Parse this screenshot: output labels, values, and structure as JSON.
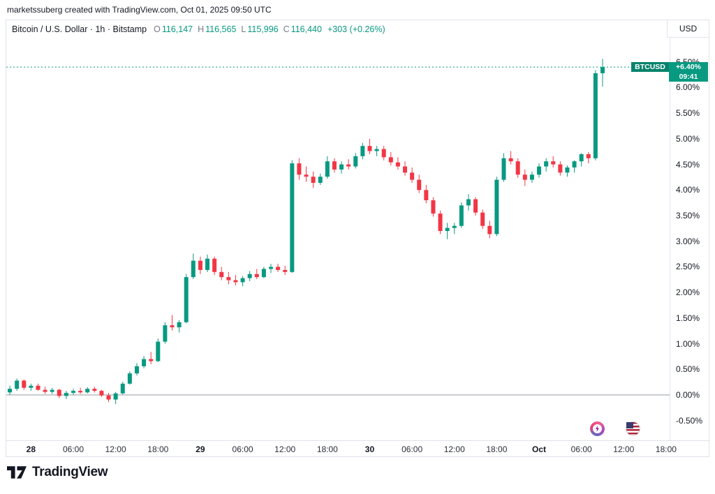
{
  "attribution": "marketssuberg created with TradingView.com, Oct 01, 2025 09:50 UTC",
  "header": {
    "symbol_title": "Bitcoin / U.S. Dollar · 1h · Bitstamp",
    "ohlc": {
      "o_label": "O",
      "o_value": "116,147",
      "h_label": "H",
      "h_value": "116,565",
      "l_label": "L",
      "l_value": "115,996",
      "c_label": "C",
      "c_value": "116,440",
      "change": "+303 (+0.26%)"
    },
    "currency": "USD"
  },
  "price_label": {
    "symbol": "BTCUSD",
    "change_pct": "+6.40%",
    "time": "09:41"
  },
  "footer": {
    "logo_text": "TradingView"
  },
  "colors": {
    "up": "#089981",
    "down": "#F23645",
    "axis_text": "#131722",
    "muted": "#787b86",
    "border": "#e0e3eb",
    "zero_line": "#9598a1",
    "label_bg": "#089981",
    "label_bg_dark": "#07836c"
  },
  "chart_data": {
    "type": "candlestick",
    "title": "Bitcoin / U.S. Dollar",
    "symbol": "BTCUSD",
    "interval": "1h",
    "exchange": "Bitstamp",
    "unit": "percent_change",
    "current_price_pct": 6.4,
    "zero_line_pct": 0.0,
    "grid": false,
    "y_axis": {
      "min": -0.885,
      "max": 6.96,
      "ticks": [
        {
          "v": 6.5,
          "label": "6.50%"
        },
        {
          "v": 6.0,
          "label": "6.00%"
        },
        {
          "v": 5.5,
          "label": "5.50%"
        },
        {
          "v": 5.0,
          "label": "5.00%"
        },
        {
          "v": 4.5,
          "label": "4.50%"
        },
        {
          "v": 4.0,
          "label": "4.00%"
        },
        {
          "v": 3.5,
          "label": "3.50%"
        },
        {
          "v": 3.0,
          "label": "3.00%"
        },
        {
          "v": 2.5,
          "label": "2.50%"
        },
        {
          "v": 2.0,
          "label": "2.00%"
        },
        {
          "v": 1.5,
          "label": "1.50%"
        },
        {
          "v": 1.0,
          "label": "1.00%"
        },
        {
          "v": 0.5,
          "label": "0.50%"
        },
        {
          "v": 0.0,
          "label": "0.00%"
        },
        {
          "v": -0.5,
          "label": "-0.50%"
        }
      ]
    },
    "x_axis": {
      "total_slots": 94,
      "labels": [
        {
          "slot": 3,
          "text": "28",
          "major": true
        },
        {
          "slot": 9,
          "text": "06:00",
          "major": false
        },
        {
          "slot": 15,
          "text": "12:00",
          "major": false
        },
        {
          "slot": 21,
          "text": "18:00",
          "major": false
        },
        {
          "slot": 27,
          "text": "29",
          "major": true
        },
        {
          "slot": 33,
          "text": "06:00",
          "major": false
        },
        {
          "slot": 39,
          "text": "12:00",
          "major": false
        },
        {
          "slot": 45,
          "text": "18:00",
          "major": false
        },
        {
          "slot": 51,
          "text": "30",
          "major": true
        },
        {
          "slot": 57,
          "text": "06:00",
          "major": false
        },
        {
          "slot": 63,
          "text": "12:00",
          "major": false
        },
        {
          "slot": 69,
          "text": "18:00",
          "major": false
        },
        {
          "slot": 75,
          "text": "Oct",
          "major": true
        },
        {
          "slot": 81,
          "text": "06:00",
          "major": false
        },
        {
          "slot": 87,
          "text": "12:00",
          "major": false
        },
        {
          "slot": 93,
          "text": "18:00",
          "major": false
        }
      ]
    },
    "candles": [
      [
        0.05,
        0.18,
        0.0,
        0.12
      ],
      [
        0.12,
        0.32,
        0.08,
        0.28
      ],
      [
        0.28,
        0.3,
        0.1,
        0.14
      ],
      [
        0.14,
        0.22,
        0.08,
        0.18
      ],
      [
        0.18,
        0.22,
        0.08,
        0.1
      ],
      [
        0.1,
        0.16,
        0.02,
        0.06
      ],
      [
        0.06,
        0.14,
        0.02,
        0.1
      ],
      [
        0.1,
        0.12,
        -0.06,
        -0.02
      ],
      [
        -0.02,
        0.08,
        -0.08,
        0.04
      ],
      [
        0.04,
        0.12,
        0.0,
        0.08
      ],
      [
        0.08,
        0.14,
        0.02,
        0.05
      ],
      [
        0.05,
        0.15,
        0.03,
        0.12
      ],
      [
        0.12,
        0.16,
        0.05,
        0.08
      ],
      [
        0.08,
        0.1,
        -0.04,
        -0.01
      ],
      [
        -0.01,
        0.04,
        -0.14,
        -0.09
      ],
      [
        -0.09,
        0.06,
        -0.18,
        0.03
      ],
      [
        0.03,
        0.26,
        0.01,
        0.22
      ],
      [
        0.22,
        0.46,
        0.2,
        0.42
      ],
      [
        0.42,
        0.62,
        0.38,
        0.56
      ],
      [
        0.56,
        0.76,
        0.52,
        0.7
      ],
      [
        0.7,
        0.84,
        0.6,
        0.66
      ],
      [
        0.66,
        1.1,
        0.64,
        1.04
      ],
      [
        1.04,
        1.42,
        1.0,
        1.36
      ],
      [
        1.36,
        1.56,
        1.26,
        1.32
      ],
      [
        1.32,
        1.46,
        1.22,
        1.42
      ],
      [
        1.42,
        2.36,
        1.4,
        2.3
      ],
      [
        2.3,
        2.76,
        2.26,
        2.62
      ],
      [
        2.62,
        2.7,
        2.36,
        2.44
      ],
      [
        2.44,
        2.74,
        2.4,
        2.66
      ],
      [
        2.66,
        2.7,
        2.34,
        2.4
      ],
      [
        2.4,
        2.5,
        2.24,
        2.3
      ],
      [
        2.3,
        2.4,
        2.16,
        2.24
      ],
      [
        2.24,
        2.34,
        2.14,
        2.2
      ],
      [
        2.2,
        2.32,
        2.12,
        2.28
      ],
      [
        2.28,
        2.42,
        2.22,
        2.36
      ],
      [
        2.36,
        2.46,
        2.26,
        2.3
      ],
      [
        2.3,
        2.5,
        2.28,
        2.46
      ],
      [
        2.46,
        2.56,
        2.38,
        2.5
      ],
      [
        2.5,
        2.56,
        2.4,
        2.44
      ],
      [
        2.44,
        2.52,
        2.34,
        2.4
      ],
      [
        2.4,
        4.58,
        2.38,
        4.52
      ],
      [
        4.52,
        4.62,
        4.2,
        4.3
      ],
      [
        4.3,
        4.46,
        4.16,
        4.26
      ],
      [
        4.26,
        4.36,
        4.04,
        4.14
      ],
      [
        4.14,
        4.32,
        4.1,
        4.26
      ],
      [
        4.26,
        4.66,
        4.22,
        4.56
      ],
      [
        4.56,
        4.62,
        4.34,
        4.4
      ],
      [
        4.4,
        4.56,
        4.32,
        4.5
      ],
      [
        4.5,
        4.6,
        4.4,
        4.46
      ],
      [
        4.46,
        4.72,
        4.42,
        4.66
      ],
      [
        4.66,
        4.92,
        4.6,
        4.86
      ],
      [
        4.86,
        5.0,
        4.7,
        4.76
      ],
      [
        4.76,
        4.86,
        4.66,
        4.8
      ],
      [
        4.8,
        4.86,
        4.58,
        4.64
      ],
      [
        4.64,
        4.74,
        4.48,
        4.54
      ],
      [
        4.54,
        4.64,
        4.4,
        4.46
      ],
      [
        4.46,
        4.56,
        4.28,
        4.34
      ],
      [
        4.34,
        4.44,
        4.14,
        4.2
      ],
      [
        4.2,
        4.3,
        3.94,
        4.0
      ],
      [
        4.0,
        4.1,
        3.74,
        3.8
      ],
      [
        3.8,
        3.86,
        3.48,
        3.54
      ],
      [
        3.54,
        3.6,
        3.14,
        3.2
      ],
      [
        3.2,
        3.36,
        3.04,
        3.26
      ],
      [
        3.26,
        3.36,
        3.14,
        3.3
      ],
      [
        3.3,
        3.76,
        3.26,
        3.7
      ],
      [
        3.7,
        3.92,
        3.6,
        3.82
      ],
      [
        3.82,
        3.86,
        3.5,
        3.56
      ],
      [
        3.56,
        3.62,
        3.24,
        3.3
      ],
      [
        3.3,
        3.4,
        3.06,
        3.14
      ],
      [
        3.14,
        4.26,
        3.1,
        4.2
      ],
      [
        4.2,
        4.72,
        4.16,
        4.62
      ],
      [
        4.62,
        4.76,
        4.5,
        4.56
      ],
      [
        4.56,
        4.62,
        4.24,
        4.3
      ],
      [
        4.3,
        4.4,
        4.08,
        4.2
      ],
      [
        4.2,
        4.36,
        4.14,
        4.3
      ],
      [
        4.3,
        4.52,
        4.24,
        4.46
      ],
      [
        4.46,
        4.62,
        4.36,
        4.56
      ],
      [
        4.56,
        4.66,
        4.44,
        4.5
      ],
      [
        4.5,
        4.56,
        4.28,
        4.34
      ],
      [
        4.34,
        4.48,
        4.26,
        4.44
      ],
      [
        4.44,
        4.58,
        4.34,
        4.56
      ],
      [
        4.56,
        4.72,
        4.46,
        4.7
      ],
      [
        4.7,
        4.74,
        4.52,
        4.62
      ],
      [
        4.62,
        6.34,
        4.58,
        6.28
      ],
      [
        6.28,
        6.56,
        6.02,
        6.4
      ]
    ]
  }
}
